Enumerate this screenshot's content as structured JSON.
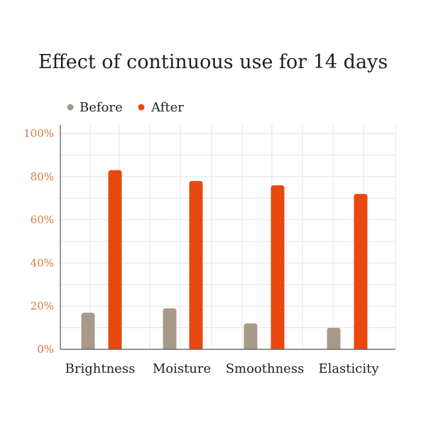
{
  "chart_data": {
    "type": "bar",
    "title": "Effect of continuous use for 14 days",
    "categories": [
      "Brightness",
      "Moisture",
      "Smoothness",
      "Elasticity"
    ],
    "series": [
      {
        "name": "Before",
        "values": [
          17,
          19,
          12,
          10
        ]
      },
      {
        "name": "After",
        "values": [
          83,
          78,
          76,
          72
        ]
      }
    ],
    "ylim": [
      0,
      100
    ],
    "yticks": [
      "0%",
      "20%",
      "40%",
      "60%",
      "80%",
      "100%"
    ],
    "legend_position": "top-left",
    "grid": true
  },
  "colors": {
    "before": "#a89a88",
    "after": "#e8490f",
    "tick": "#d07a44",
    "grid": "#e3e3e3",
    "axis": "#555555"
  }
}
